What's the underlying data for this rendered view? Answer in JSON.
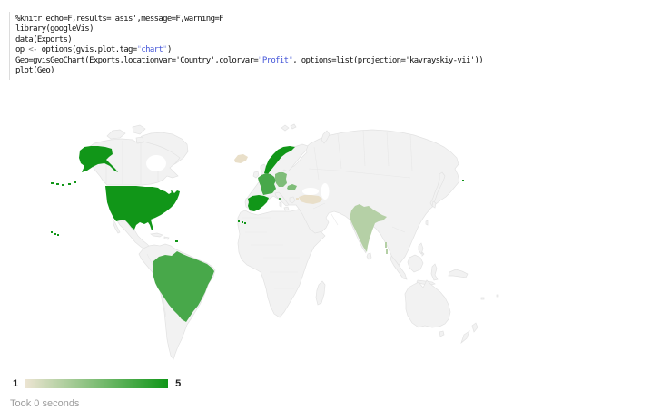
{
  "code_block": {
    "lines": [
      {
        "segments": [
          {
            "text": "%knitr echo=F,results='asis',message=F,warning=F",
            "type": "plain"
          }
        ]
      },
      {
        "segments": [
          {
            "text": "library(googleVis)",
            "type": "plain"
          }
        ]
      },
      {
        "segments": [
          {
            "text": "data(Exports)",
            "type": "plain"
          }
        ]
      },
      {
        "segments": [
          {
            "text": "op ",
            "type": "plain"
          },
          {
            "text": "<-",
            "type": "operator"
          },
          {
            "text": " options(gvis.plot.tag=",
            "type": "plain"
          },
          {
            "text": "\"",
            "type": "quote"
          },
          {
            "text": "chart",
            "type": "string"
          },
          {
            "text": "\"",
            "type": "quote"
          },
          {
            "text": ")",
            "type": "plain"
          }
        ]
      },
      {
        "segments": [
          {
            "text": "Geo=gvisGeoChart(Exports,locationvar='Country',colorvar=",
            "type": "plain"
          },
          {
            "text": "\"",
            "type": "quote"
          },
          {
            "text": "Profit",
            "type": "string"
          },
          {
            "text": "\"",
            "type": "quote"
          },
          {
            "text": ", options=list(projection='kavrayskiy-vii'))",
            "type": "plain"
          }
        ]
      },
      {
        "segments": [
          {
            "text": "plot(Geo)",
            "type": "plain"
          }
        ]
      }
    ],
    "colors": {
      "plain": "#111111",
      "string": "#4254d8",
      "quote": "#9aa4e8",
      "operator": "#757575"
    }
  },
  "chart_data": {
    "type": "heatmap",
    "subtype": "geochart-choropleth",
    "projection": "kavrayskiy-vii",
    "series_label": "Profit",
    "categories": [
      "United States",
      "Norway",
      "Spain",
      "Brazil",
      "France",
      "Germany",
      "Hungary",
      "India",
      "Iceland",
      "Turkey"
    ],
    "values": [
      5,
      5,
      5,
      4,
      4,
      3,
      3,
      2,
      1,
      1
    ],
    "legend_position": "bottom-left",
    "color_scale": {
      "min": 1,
      "max": 5,
      "min_color": "#ece4d2",
      "max_color": "#109618"
    }
  },
  "map": {
    "ocean_color": "#ffffff",
    "land_color": "#f2f2f2",
    "border_color": "#e2e2e2",
    "value_colors": {
      "1": "#e9dfc9",
      "2": "#b5d0a6",
      "3": "#7fbd79",
      "4": "#48a84a",
      "5": "#119618"
    },
    "countries": [
      {
        "id": "united-states",
        "name": "United States",
        "value": 5
      },
      {
        "id": "norway",
        "name": "Norway",
        "value": 5
      },
      {
        "id": "spain",
        "name": "Spain",
        "value": 5
      },
      {
        "id": "brazil",
        "name": "Brazil",
        "value": 4
      },
      {
        "id": "france",
        "name": "France",
        "value": 4
      },
      {
        "id": "germany",
        "name": "Germany",
        "value": 3
      },
      {
        "id": "hungary",
        "name": "Hungary",
        "value": 3
      },
      {
        "id": "india",
        "name": "India",
        "value": 2
      },
      {
        "id": "iceland",
        "name": "Iceland",
        "value": 1
      },
      {
        "id": "turkey",
        "name": "Turkey",
        "value": 1
      }
    ]
  },
  "legend": {
    "min": "1",
    "max": "5"
  },
  "status": {
    "took": "Took 0 seconds"
  }
}
